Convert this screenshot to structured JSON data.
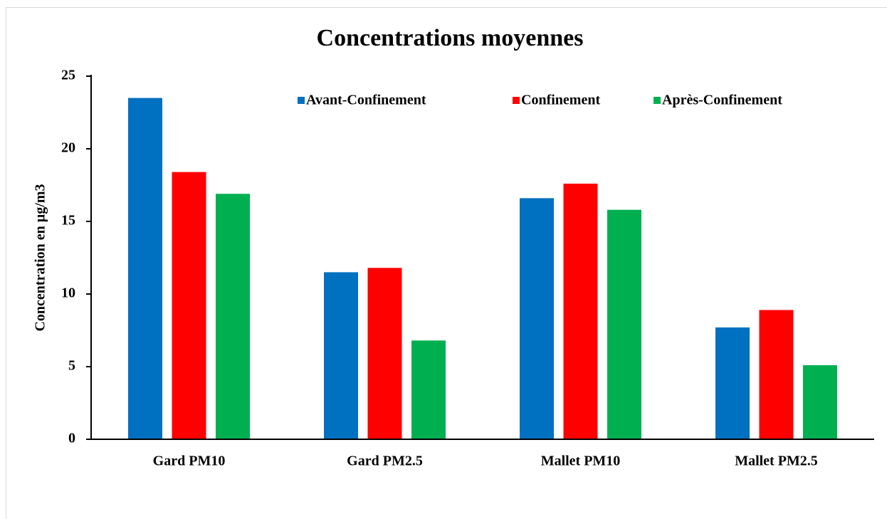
{
  "chart_data": {
    "type": "bar",
    "title": "Concentrations moyennes",
    "y_label": "Concentration en µg/m3",
    "categories": [
      "Gard PM10",
      "Gard PM2.5",
      "Mallet PM10",
      "Mallet PM2.5"
    ],
    "series": [
      {
        "name": "Avant-Confinement",
        "color": "#0070c0",
        "values": [
          23.5,
          11.5,
          16.6,
          7.7
        ]
      },
      {
        "name": "Confinement",
        "color": "#ff0000",
        "values": [
          18.4,
          11.8,
          17.6,
          8.9
        ]
      },
      {
        "name": "Après-Confinement",
        "color": "#00b050",
        "values": [
          16.9,
          6.8,
          15.8,
          5.1
        ]
      }
    ],
    "ylim": [
      0,
      25
    ],
    "yticks": [
      0,
      5,
      10,
      15,
      20,
      25
    ],
    "legend": "top-right"
  }
}
